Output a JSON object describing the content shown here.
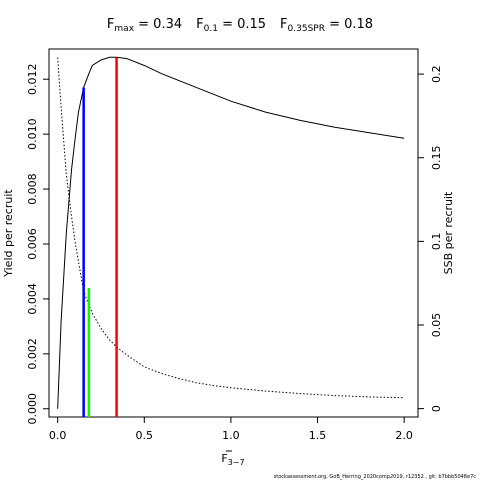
{
  "title": {
    "fmax_label": "Fmax = 0.34",
    "f01_label": "F0.1 = 0.15",
    "f035spr_label": "F0.35SPR = 0.18"
  },
  "footer": "stockassessment.org, GoB_Herring_2020comp2019, r12352 , git: b7bbb5048e7c",
  "chart_data": {
    "type": "line",
    "xlabel": "F3-7",
    "ylabel_left": "Yield per recruit",
    "ylabel_right": "SSB per recruit",
    "xlim": [
      -0.05,
      2.08
    ],
    "ylim_left": [
      -0.0003,
      0.0131
    ],
    "ylim_right": [
      -0.005,
      0.215
    ],
    "x_ticks": [
      0,
      0.5,
      1.0,
      1.5,
      2.0
    ],
    "x_tick_labels": [
      "0.0",
      "0.5",
      "1.0",
      "1.5",
      "2.0"
    ],
    "y_left_ticks": [
      0,
      0.002,
      0.004,
      0.006,
      0.008,
      0.01,
      0.012
    ],
    "y_left_tick_labels": [
      "0.000",
      "0.002",
      "0.004",
      "0.006",
      "0.008",
      "0.010",
      "0.012"
    ],
    "y_right_ticks": [
      0,
      0.05,
      0.1,
      0.15,
      0.2
    ],
    "y_right_tick_labels": [
      "0",
      "0.05",
      "0.1",
      "0.15",
      "0.2"
    ],
    "series": [
      {
        "name": "Yield per recruit",
        "axis": "left",
        "style": "solid",
        "color": "#000000",
        "x": [
          0,
          0.02,
          0.05,
          0.08,
          0.1,
          0.12,
          0.15,
          0.18,
          0.2,
          0.25,
          0.3,
          0.34,
          0.4,
          0.5,
          0.6,
          0.7,
          0.8,
          0.9,
          1.0,
          1.2,
          1.4,
          1.6,
          1.8,
          2.0
        ],
        "y": [
          0.0,
          0.0032,
          0.0064,
          0.0087,
          0.0098,
          0.0108,
          0.0117,
          0.0122,
          0.0125,
          0.0127,
          0.0128,
          0.0128,
          0.01275,
          0.0125,
          0.0122,
          0.01195,
          0.0117,
          0.01145,
          0.0112,
          0.0108,
          0.0105,
          0.01025,
          0.01005,
          0.00985
        ]
      },
      {
        "name": "SSB per recruit",
        "axis": "right",
        "style": "dotted",
        "color": "#000000",
        "x": [
          0,
          0.02,
          0.05,
          0.08,
          0.1,
          0.15,
          0.2,
          0.25,
          0.3,
          0.35,
          0.4,
          0.5,
          0.6,
          0.7,
          0.8,
          0.9,
          1.0,
          1.2,
          1.4,
          1.6,
          1.8,
          2.0
        ],
        "y": [
          0.21,
          0.18,
          0.14,
          0.115,
          0.1,
          0.07,
          0.057,
          0.048,
          0.041,
          0.036,
          0.032,
          0.025,
          0.021,
          0.018,
          0.0155,
          0.0138,
          0.0125,
          0.0105,
          0.009,
          0.0078,
          0.007,
          0.0065
        ]
      }
    ],
    "reference_lines": [
      {
        "name": "Fmax",
        "color": "#ff0000",
        "x": 0.34,
        "y_bottom": -0.0003,
        "y_top": 0.0128
      },
      {
        "name": "F0.1",
        "color": "#0000ff",
        "x": 0.15,
        "y_bottom": -0.0003,
        "y_top": 0.0117
      },
      {
        "name": "F0.35SPR",
        "color": "#00ff00",
        "x": 0.18,
        "y_bottom": -0.0003,
        "y_top": 0.0044
      }
    ]
  }
}
